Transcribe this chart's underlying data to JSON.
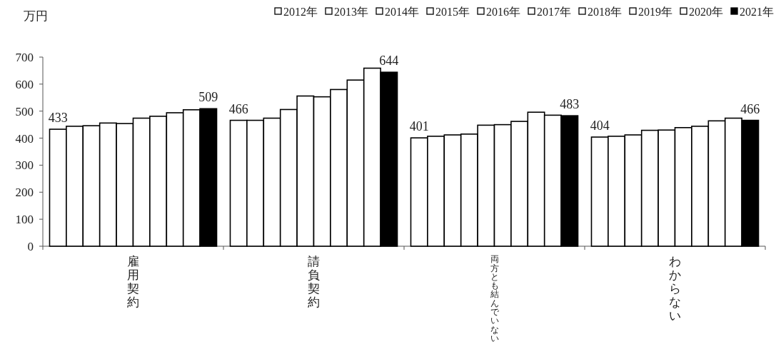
{
  "chart_data": {
    "type": "bar",
    "ylabel": "万円",
    "categories": [
      "雇用契約",
      "請負契約",
      "両方とも結んでいない",
      "わからない"
    ],
    "ylim": [
      0,
      700
    ],
    "yticks": [
      0,
      100,
      200,
      300,
      400,
      500,
      600,
      700
    ],
    "legend": "top",
    "series": [
      {
        "name": "2012年",
        "color": "#ffffff",
        "values": [
          433,
          466,
          401,
          404
        ],
        "value_labels": [
          "433",
          "466",
          "401",
          "404"
        ]
      },
      {
        "name": "2013年",
        "color": "#ffffff",
        "values": [
          444,
          466,
          407,
          407
        ]
      },
      {
        "name": "2014年",
        "color": "#ffffff",
        "values": [
          446,
          474,
          412,
          412
        ]
      },
      {
        "name": "2015年",
        "color": "#ffffff",
        "values": [
          456,
          506,
          415,
          429
        ]
      },
      {
        "name": "2016年",
        "color": "#ffffff",
        "values": [
          454,
          556,
          448,
          430
        ]
      },
      {
        "name": "2017年",
        "color": "#ffffff",
        "values": [
          474,
          553,
          450,
          439
        ]
      },
      {
        "name": "2018年",
        "color": "#ffffff",
        "values": [
          481,
          580,
          462,
          444
        ]
      },
      {
        "name": "2019年",
        "color": "#ffffff",
        "values": [
          494,
          615,
          496,
          464
        ]
      },
      {
        "name": "2020年",
        "color": "#ffffff",
        "values": [
          505,
          659,
          485,
          474
        ]
      },
      {
        "name": "2021年",
        "color": "#000000",
        "values": [
          509,
          644,
          483,
          466
        ],
        "value_labels": [
          "509",
          "644",
          "483",
          "466"
        ]
      }
    ]
  }
}
